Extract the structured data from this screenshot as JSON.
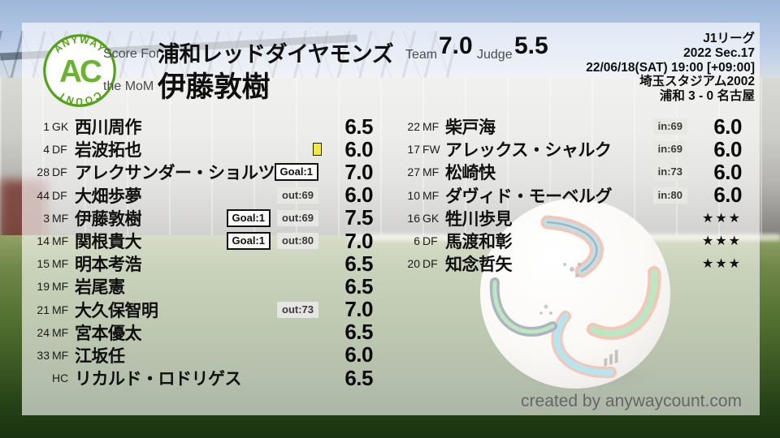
{
  "logo": {
    "arc_top": "ANYWAY",
    "arc_bottom": "COUNT",
    "monogram": "AC"
  },
  "header": {
    "score_for_label": "Score For",
    "team_name": "浦和レッドダイヤモンズ",
    "mom_label": "the MoM",
    "mom_name": "伊藤敦樹",
    "team_label": "Team",
    "team_score": "7.0",
    "judge_label": "Judge",
    "judge_score": "5.5",
    "match_info": {
      "league": "J1リーグ",
      "season": "2022 Sec.17",
      "datetime": "22/06/18(SAT) 19:00 [+09:00]",
      "venue": "埼玉スタジアム2002",
      "result": "浦和 3 - 0 名古屋"
    }
  },
  "starters": [
    {
      "num": "1",
      "pos": "GK",
      "name": "西川周作",
      "badges": [],
      "rating": "6.5"
    },
    {
      "num": "4",
      "pos": "DF",
      "name": "岩波拓也",
      "badges": [
        {
          "type": "yellow",
          "label": ""
        }
      ],
      "rating": "6.0"
    },
    {
      "num": "28",
      "pos": "DF",
      "name": "アレクサンダー・ショルツ",
      "badges": [
        {
          "type": "goal",
          "label": "Goal:1"
        }
      ],
      "rating": "7.0"
    },
    {
      "num": "44",
      "pos": "DF",
      "name": "大畑歩夢",
      "badges": [
        {
          "type": "sub",
          "label": "out:69"
        }
      ],
      "rating": "6.0"
    },
    {
      "num": "3",
      "pos": "MF",
      "name": "伊藤敦樹",
      "badges": [
        {
          "type": "goal",
          "label": "Goal:1"
        },
        {
          "type": "sub",
          "label": "out:69"
        }
      ],
      "rating": "7.5"
    },
    {
      "num": "14",
      "pos": "MF",
      "name": "関根貴大",
      "badges": [
        {
          "type": "goal",
          "label": "Goal:1"
        },
        {
          "type": "sub",
          "label": "out:80"
        }
      ],
      "rating": "7.0"
    },
    {
      "num": "15",
      "pos": "MF",
      "name": "明本考浩",
      "badges": [],
      "rating": "6.5"
    },
    {
      "num": "19",
      "pos": "MF",
      "name": "岩尾憲",
      "badges": [],
      "rating": "6.5"
    },
    {
      "num": "21",
      "pos": "MF",
      "name": "大久保智明",
      "badges": [
        {
          "type": "sub",
          "label": "out:73"
        }
      ],
      "rating": "7.0"
    },
    {
      "num": "24",
      "pos": "MF",
      "name": "宮本優太",
      "badges": [],
      "rating": "6.5"
    },
    {
      "num": "33",
      "pos": "MF",
      "name": "江坂任",
      "badges": [],
      "rating": "6.0"
    },
    {
      "num": "",
      "pos": "HC",
      "name": "リカルド・ロドリゲス",
      "badges": [],
      "rating": "6.5"
    }
  ],
  "subs": [
    {
      "num": "22",
      "pos": "MF",
      "name": "柴戸海",
      "badges": [
        {
          "type": "sub",
          "label": "in:69"
        }
      ],
      "rating": "6.0"
    },
    {
      "num": "17",
      "pos": "FW",
      "name": "アレックス・シャルク",
      "badges": [
        {
          "type": "sub",
          "label": "in:69"
        }
      ],
      "rating": "6.0"
    },
    {
      "num": "27",
      "pos": "MF",
      "name": "松崎快",
      "badges": [
        {
          "type": "sub",
          "label": "in:73"
        }
      ],
      "rating": "6.0"
    },
    {
      "num": "10",
      "pos": "MF",
      "name": "ダヴィド・モーベルグ",
      "badges": [
        {
          "type": "sub",
          "label": "in:80"
        }
      ],
      "rating": "6.0"
    },
    {
      "num": "16",
      "pos": "GK",
      "name": "牲川歩見",
      "badges": [],
      "rating": "★★★",
      "stars": true
    },
    {
      "num": "6",
      "pos": "DF",
      "name": "馬渡和彰",
      "badges": [],
      "rating": "★★★",
      "stars": true
    },
    {
      "num": "20",
      "pos": "DF",
      "name": "知念哲矢",
      "badges": [],
      "rating": "★★★",
      "stars": true
    }
  ],
  "footer": {
    "credit": "created by anywaycount.com"
  },
  "colors": {
    "logo_green": "#53a318",
    "monogram_green": "#6ab42d",
    "yellow_card": "#f3e93c",
    "panel_wash": "rgba(255,255,255,0.63)"
  }
}
